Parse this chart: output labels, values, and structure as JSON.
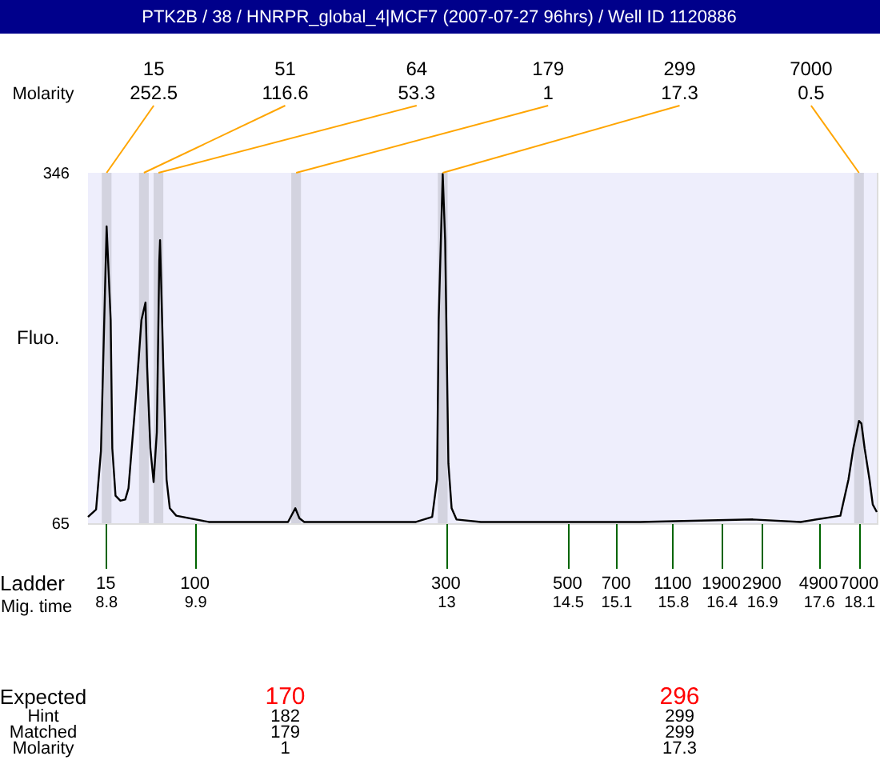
{
  "chart_data": {
    "type": "line",
    "title": "PTK2B / 38 / HNRPR_global_4|MCF7 (2007-07-27 96hrs) / Well ID 1120886",
    "ylabel": "Fluo.",
    "xlabel": "Mig. time",
    "x": [
      8.58,
      8.68,
      8.74,
      8.81,
      8.86,
      8.88,
      8.92,
      8.98,
      9.04,
      9.08,
      9.18,
      9.24,
      9.29,
      9.31,
      9.35,
      9.39,
      9.43,
      9.46,
      9.47,
      9.51,
      9.55,
      9.59,
      9.67,
      10.07,
      11.05,
      11.14,
      11.19,
      11.25,
      12.63,
      12.83,
      12.89,
      12.91,
      12.96,
      12.99,
      13.03,
      13.07,
      13.13,
      13.43,
      14.41,
      15.4,
      16.79,
      17.38,
      17.87,
      17.97,
      18.03,
      18.1,
      18.13,
      18.17,
      18.23,
      18.27,
      18.32
    ],
    "series": [
      {
        "color": "#000000",
        "values": [
          70,
          76,
          123,
          303,
          228,
          125,
          87,
          83,
          84,
          93,
          173,
          228,
          242,
          190,
          125,
          98,
          138,
          275,
          292,
          190,
          100,
          77,
          71,
          66,
          66,
          77,
          69,
          66,
          66,
          70,
          100,
          228,
          345,
          292,
          113,
          77,
          68,
          66,
          66,
          66,
          68,
          66,
          71,
          100,
          125,
          147,
          145,
          125,
          100,
          80,
          74
        ]
      }
    ],
    "xlim": [
      8.58,
      18.32
    ],
    "ylim": [
      65,
      346
    ],
    "yticks": [
      65,
      346
    ],
    "xticks": [
      8.8,
      9.9,
      13,
      14.5,
      15.1,
      15.8,
      16.4,
      16.9,
      17.6,
      18.1
    ],
    "bands": [
      {
        "axis": "x",
        "from": 8.75,
        "to": 8.87,
        "color": "#d3d3df"
      },
      {
        "axis": "x",
        "from": 9.21,
        "to": 9.33,
        "color": "#d3d3df"
      },
      {
        "axis": "x",
        "from": 9.39,
        "to": 9.51,
        "color": "#d3d3df"
      },
      {
        "axis": "x",
        "from": 11.09,
        "to": 11.21,
        "color": "#d3d3df"
      },
      {
        "axis": "x",
        "from": 12.9,
        "to": 13.02,
        "color": "#d3d3df"
      },
      {
        "axis": "x",
        "from": 18.04,
        "to": 18.16,
        "color": "#d3d3df"
      }
    ],
    "annotations": [
      {
        "text": "15\n252.5",
        "x": 8.81,
        "y": 346
      },
      {
        "text": "51\n116.6",
        "x": 9.27,
        "y": 346
      },
      {
        "text": "64\n53.3",
        "x": 9.45,
        "y": 346
      },
      {
        "text": "179\n1",
        "x": 11.15,
        "y": 346
      },
      {
        "text": "299\n17.3",
        "x": 12.96,
        "y": 346
      },
      {
        "text": "7000\n0.5",
        "x": 18.1,
        "y": 346
      },
      "Molarity",
      "Expected",
      "Hint",
      "Matched",
      "Molarity",
      "170",
      "182",
      "179",
      "1",
      "296",
      "299",
      "299",
      "17.3",
      "Ladder",
      "15",
      "100",
      "300",
      "500",
      "700",
      "1100",
      "1900",
      "2900",
      "4900",
      "7000"
    ],
    "line_style": "solid",
    "marker": "none"
  }
}
